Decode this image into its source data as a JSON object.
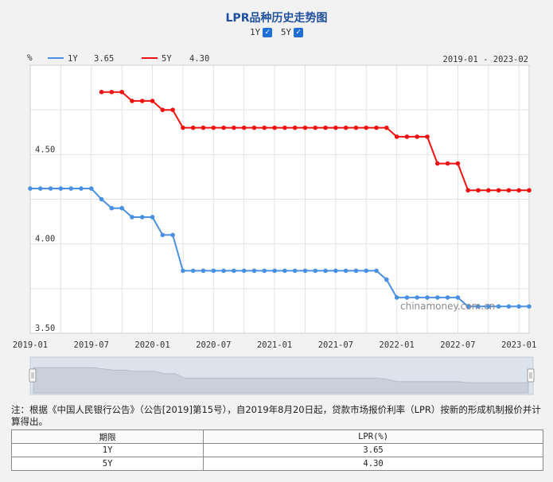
{
  "page": {
    "title": "LPR品种历史走势图",
    "toggle_1y": "1Y",
    "toggle_5y": "5Y",
    "checkmark": "✓",
    "watermark": "chinamoney.com.cn",
    "note": "注：根据《中国人民银行公告》（公告[2019]第15号），自2019年8月20日起，贷款市场报价利率（LPR）按新的形成机制报价并计算得出。",
    "table": {
      "headers": [
        "期限",
        "LPR(%)"
      ],
      "rows": [
        [
          "1Y",
          "3.65"
        ],
        [
          "5Y",
          "4.30"
        ]
      ]
    }
  },
  "chart_data": {
    "type": "line",
    "ylabel": "%",
    "range_label": "2019-01 - 2023-02",
    "ylim": [
      3.5,
      5.0
    ],
    "xlim": [
      "2019-01",
      "2023-02"
    ],
    "y_ticks": [
      "3.50",
      "4.00",
      "4.50"
    ],
    "x_ticks": [
      "2019-01",
      "2019-07",
      "2020-01",
      "2020-07",
      "2021-01",
      "2021-07",
      "2022-01",
      "2022-07",
      "2023-01"
    ],
    "grid": true,
    "legend_position": "top-left",
    "colors": {
      "1Y": "#4a90e2",
      "5Y": "#ee1111"
    },
    "series": [
      {
        "name": "1Y",
        "legend_value": "3.65",
        "x": [
          "2019-01",
          "2019-02",
          "2019-03",
          "2019-04",
          "2019-05",
          "2019-06",
          "2019-07",
          "2019-08",
          "2019-09",
          "2019-10",
          "2019-11",
          "2019-12",
          "2020-01",
          "2020-02",
          "2020-03",
          "2020-04",
          "2020-05",
          "2020-06",
          "2020-07",
          "2020-08",
          "2020-09",
          "2020-10",
          "2020-11",
          "2020-12",
          "2021-01",
          "2021-02",
          "2021-03",
          "2021-04",
          "2021-05",
          "2021-06",
          "2021-07",
          "2021-08",
          "2021-09",
          "2021-10",
          "2021-11",
          "2021-12",
          "2022-01",
          "2022-02",
          "2022-03",
          "2022-04",
          "2022-05",
          "2022-06",
          "2022-07",
          "2022-08",
          "2022-09",
          "2022-10",
          "2022-11",
          "2022-12",
          "2023-01",
          "2023-02"
        ],
        "values": [
          4.31,
          4.31,
          4.31,
          4.31,
          4.31,
          4.31,
          4.31,
          4.25,
          4.2,
          4.2,
          4.15,
          4.15,
          4.15,
          4.05,
          4.05,
          3.85,
          3.85,
          3.85,
          3.85,
          3.85,
          3.85,
          3.85,
          3.85,
          3.85,
          3.85,
          3.85,
          3.85,
          3.85,
          3.85,
          3.85,
          3.85,
          3.85,
          3.85,
          3.85,
          3.85,
          3.8,
          3.7,
          3.7,
          3.7,
          3.7,
          3.7,
          3.7,
          3.7,
          3.65,
          3.65,
          3.65,
          3.65,
          3.65,
          3.65,
          3.65
        ]
      },
      {
        "name": "5Y",
        "legend_value": "4.30",
        "x": [
          "2019-08",
          "2019-09",
          "2019-10",
          "2019-11",
          "2019-12",
          "2020-01",
          "2020-02",
          "2020-03",
          "2020-04",
          "2020-05",
          "2020-06",
          "2020-07",
          "2020-08",
          "2020-09",
          "2020-10",
          "2020-11",
          "2020-12",
          "2021-01",
          "2021-02",
          "2021-03",
          "2021-04",
          "2021-05",
          "2021-06",
          "2021-07",
          "2021-08",
          "2021-09",
          "2021-10",
          "2021-11",
          "2021-12",
          "2022-01",
          "2022-02",
          "2022-03",
          "2022-04",
          "2022-05",
          "2022-06",
          "2022-07",
          "2022-08",
          "2022-09",
          "2022-10",
          "2022-11",
          "2022-12",
          "2023-01",
          "2023-02"
        ],
        "values": [
          4.85,
          4.85,
          4.85,
          4.8,
          4.8,
          4.8,
          4.75,
          4.75,
          4.65,
          4.65,
          4.65,
          4.65,
          4.65,
          4.65,
          4.65,
          4.65,
          4.65,
          4.65,
          4.65,
          4.65,
          4.65,
          4.65,
          4.65,
          4.65,
          4.65,
          4.65,
          4.65,
          4.65,
          4.65,
          4.6,
          4.6,
          4.6,
          4.6,
          4.45,
          4.45,
          4.45,
          4.3,
          4.3,
          4.3,
          4.3,
          4.3,
          4.3,
          4.3
        ]
      }
    ]
  }
}
